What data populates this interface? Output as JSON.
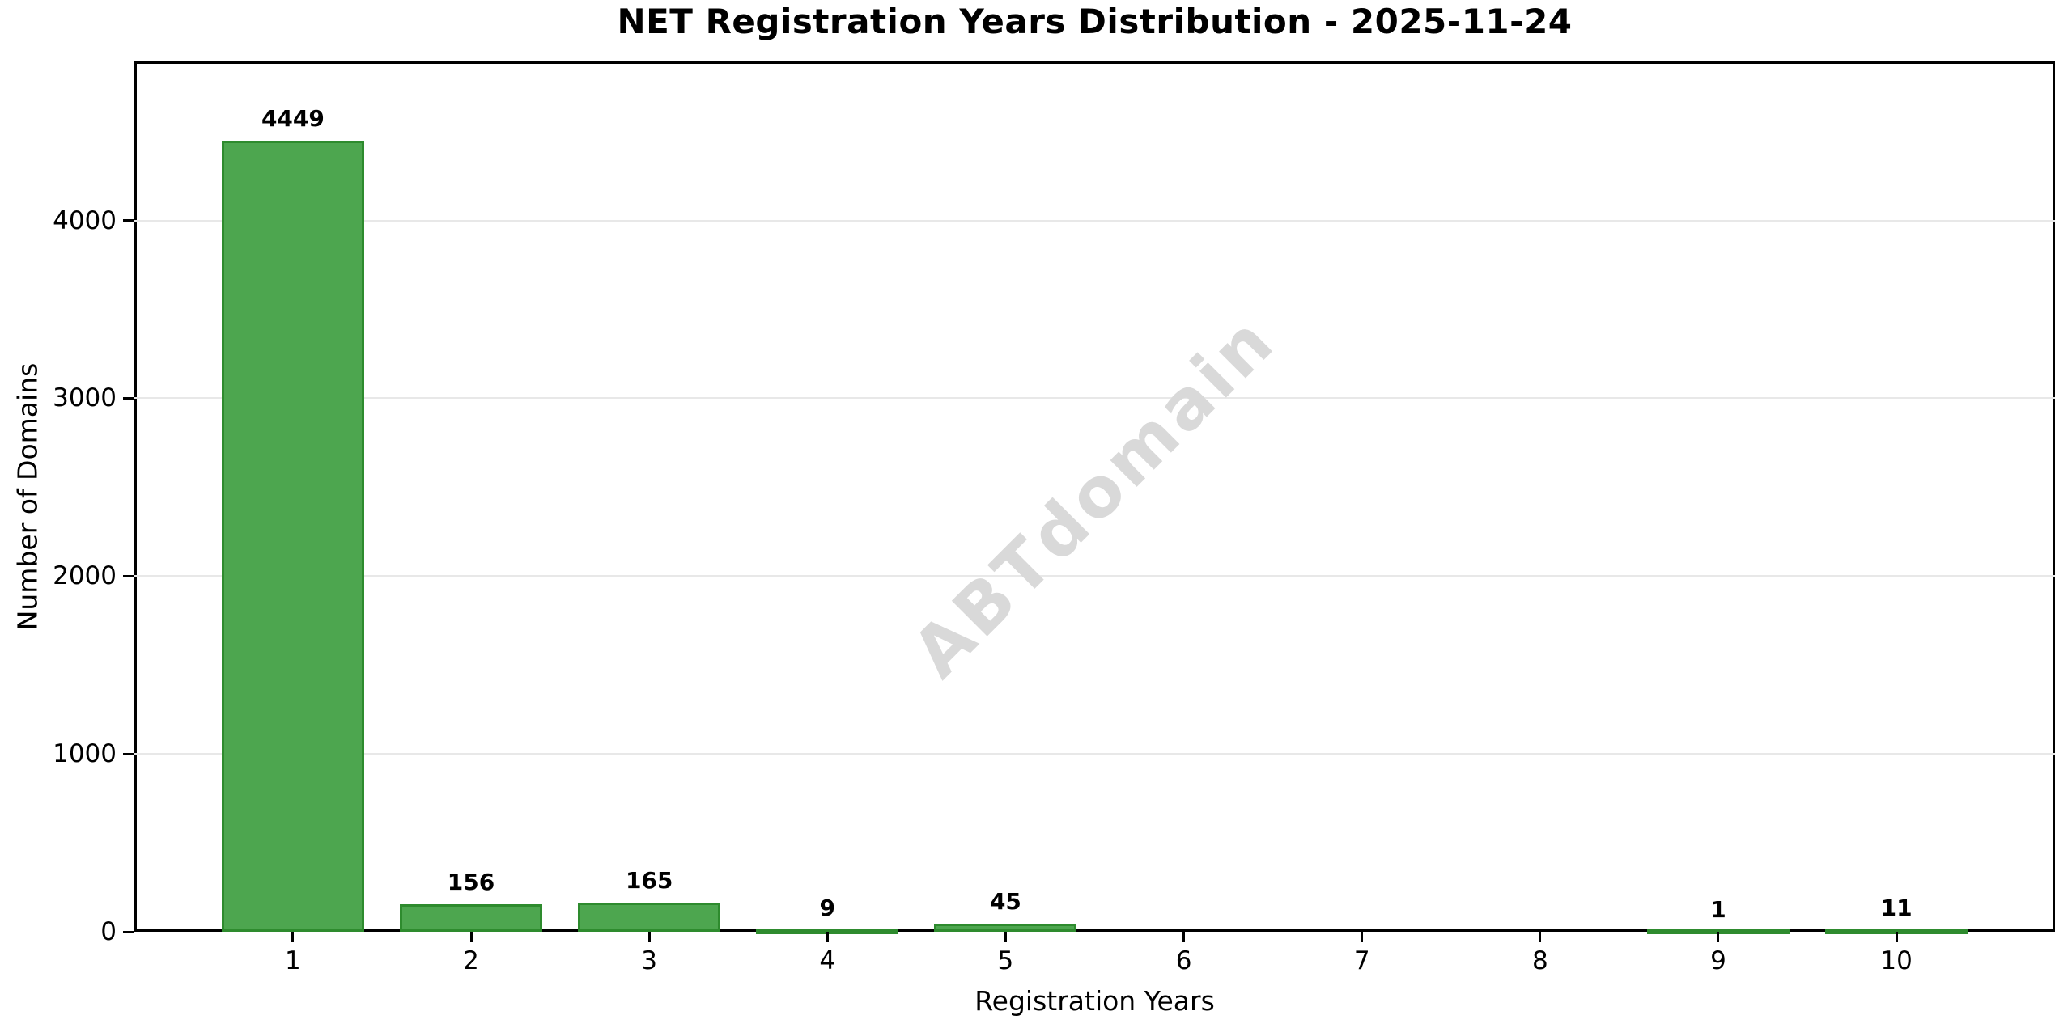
{
  "chart": {
    "title": "NET Registration Years Distribution - 2025-11-24",
    "xlabel": "Registration Years",
    "ylabel": "Number of Domains",
    "watermark": "ABTdomain"
  },
  "chart_data": {
    "type": "bar",
    "title": "NET Registration Years Distribution - 2025-11-24",
    "xlabel": "Registration Years",
    "ylabel": "Number of Domains",
    "watermark": "ABTdomain",
    "categories": [
      "1",
      "2",
      "3",
      "4",
      "5",
      "6",
      "7",
      "8",
      "9",
      "10"
    ],
    "values": [
      4449,
      156,
      165,
      9,
      45,
      0,
      0,
      0,
      1,
      11
    ],
    "bar_value_labels": [
      "4449",
      "156",
      "165",
      "9",
      "45",
      "",
      "",
      "",
      "1",
      "11"
    ],
    "yticks": [
      0,
      1000,
      2000,
      3000,
      4000
    ],
    "ylim": [
      0,
      4894
    ],
    "xlim": [
      0.11,
      10.89
    ],
    "bar_width_data": 0.8,
    "grid": "horizontal",
    "legend": "none",
    "colors": {
      "bar_fill": "#4da64f",
      "bar_edge": "#2e8b2e",
      "grid_color": "#e8e8e8",
      "axis_color": "#000000",
      "text_color": "#000000",
      "watermark_color": "#d9d9d9"
    }
  }
}
